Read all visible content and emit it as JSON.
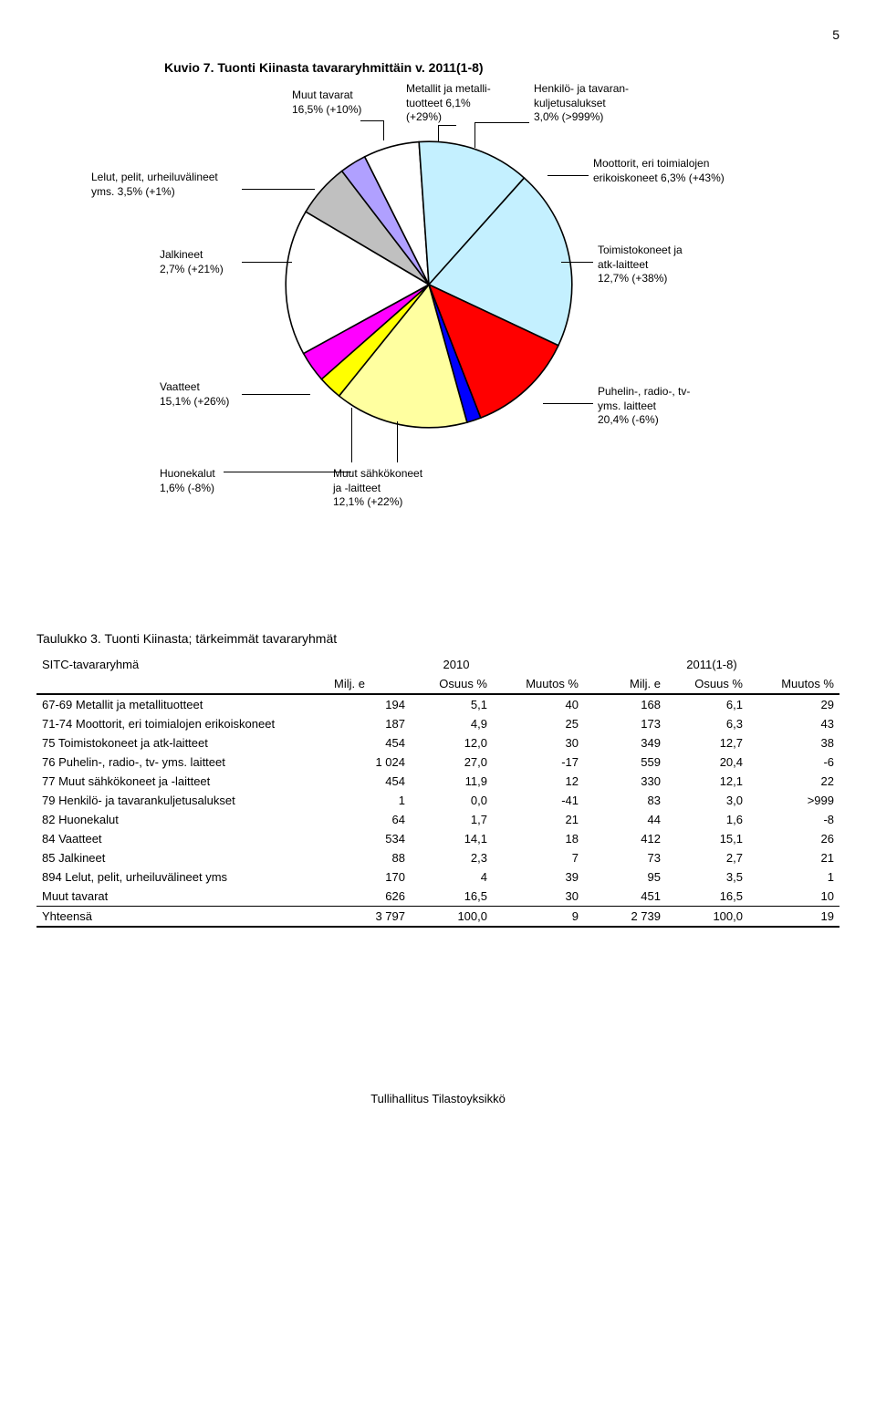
{
  "page_number": "5",
  "chart": {
    "title": "Kuvio 7. Tuonti Kiinasta tavararyhmittäin v. 2011(1-8)",
    "type": "pie",
    "background_color": "#ffffff",
    "label_fontsize": 12,
    "slices": [
      {
        "label_lines": [
          "Metallit ja metalli-",
          "tuotteet 6,1%",
          "(+29%)"
        ],
        "value": 6.1,
        "color": "#c0c0c0"
      },
      {
        "label_lines": [
          "Henkilö- ja tavaran-",
          "kuljetusalukset",
          "3,0% (>999%)"
        ],
        "value": 3.0,
        "color": "#b0a0ff"
      },
      {
        "label_lines": [
          "Moottorit, eri toimialojen",
          "erikoiskoneet 6,3% (+43%)"
        ],
        "value": 6.3,
        "color": "#ffffff"
      },
      {
        "label_lines": [
          "Toimistokoneet ja",
          "atk-laitteet",
          "12,7% (+38%)"
        ],
        "value": 12.7,
        "color": "#c4f0ff"
      },
      {
        "label_lines": [
          "Puhelin-, radio-, tv-",
          "yms. laitteet",
          "20,4% (-6%)"
        ],
        "value": 20.4,
        "color": "#c4f0ff"
      },
      {
        "label_lines": [
          "Muut sähkökoneet",
          "ja -laitteet",
          "12,1% (+22%)"
        ],
        "value": 12.1,
        "color": "#ff0000"
      },
      {
        "label_lines": [
          "Huonekalut",
          "1,6% (-8%)"
        ],
        "value": 1.6,
        "color": "#0000ff"
      },
      {
        "label_lines": [
          "Vaatteet",
          "15,1% (+26%)"
        ],
        "value": 15.1,
        "color": "#ffffa0"
      },
      {
        "label_lines": [
          "Jalkineet",
          "2,7% (+21%)"
        ],
        "value": 2.7,
        "color": "#ffff00"
      },
      {
        "label_lines": [
          "Lelut, pelit, urheiluvälineet",
          "yms. 3,5% (+1%)"
        ],
        "value": 3.5,
        "color": "#ff00ff"
      },
      {
        "label_lines": [
          "Muut tavarat",
          "16,5% (+10%)"
        ],
        "value": 16.5,
        "color": "#ffffff"
      }
    ],
    "stroke_color": "#000000",
    "stroke_width": 1
  },
  "table": {
    "title": "Taulukko 3. Tuonti Kiinasta; tärkeimmät tavararyhmät",
    "header": {
      "group_label": "SITC-tavararyhmä",
      "col_2010": "2010",
      "col_2011": "2011(1-8)",
      "sub_milj": "Milj. e",
      "sub_osuus": "Osuus %",
      "sub_muutos": "Muutos %"
    },
    "rows": [
      {
        "label": "67-69 Metallit ja metallituotteet",
        "c1": "194",
        "c2": "5,1",
        "c3": "40",
        "c4": "168",
        "c5": "6,1",
        "c6": "29"
      },
      {
        "label": "71-74 Moottorit, eri toimialojen erikoiskoneet",
        "c1": "187",
        "c2": "4,9",
        "c3": "25",
        "c4": "173",
        "c5": "6,3",
        "c6": "43"
      },
      {
        "label": "75 Toimistokoneet ja atk-laitteet",
        "c1": "454",
        "c2": "12,0",
        "c3": "30",
        "c4": "349",
        "c5": "12,7",
        "c6": "38"
      },
      {
        "label": "76 Puhelin-, radio-, tv- yms. laitteet",
        "c1": "1 024",
        "c2": "27,0",
        "c3": "-17",
        "c4": "559",
        "c5": "20,4",
        "c6": "-6"
      },
      {
        "label": "77 Muut sähkökoneet ja -laitteet",
        "c1": "454",
        "c2": "11,9",
        "c3": "12",
        "c4": "330",
        "c5": "12,1",
        "c6": "22"
      },
      {
        "label": "79 Henkilö- ja tavarankuljetusalukset",
        "c1": "1",
        "c2": "0,0",
        "c3": "-41",
        "c4": "83",
        "c5": "3,0",
        "c6": ">999"
      },
      {
        "label": "82 Huonekalut",
        "c1": "64",
        "c2": "1,7",
        "c3": "21",
        "c4": "44",
        "c5": "1,6",
        "c6": "-8"
      },
      {
        "label": "84 Vaatteet",
        "c1": "534",
        "c2": "14,1",
        "c3": "18",
        "c4": "412",
        "c5": "15,1",
        "c6": "26"
      },
      {
        "label": "85 Jalkineet",
        "c1": "88",
        "c2": "2,3",
        "c3": "7",
        "c4": "73",
        "c5": "2,7",
        "c6": "21"
      },
      {
        "label": "894 Lelut, pelit, urheiluvälineet yms",
        "c1": "170",
        "c2": "4",
        "c3": "39",
        "c4": "95",
        "c5": "3,5",
        "c6": "1"
      },
      {
        "label": "Muut tavarat",
        "c1": "626",
        "c2": "16,5",
        "c3": "30",
        "c4": "451",
        "c5": "16,5",
        "c6": "10"
      },
      {
        "label": "Yhteensä",
        "c1": "3 797",
        "c2": "100,0",
        "c3": "9",
        "c4": "2 739",
        "c5": "100,0",
        "c6": "19"
      }
    ]
  },
  "footer": "Tullihallitus Tilastoyksikkö"
}
